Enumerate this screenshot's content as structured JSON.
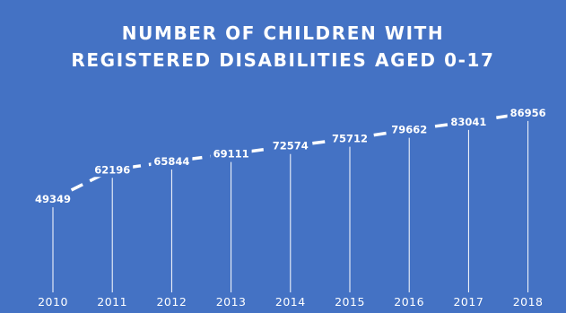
{
  "colors": {
    "background": "#4472C4",
    "line": "#ffffff",
    "text": "#ffffff"
  },
  "chart_data": {
    "type": "line",
    "title_lines": [
      "NUMBER OF CHILDREN WITH",
      "REGISTERED DISABILITIES AGED 0-17"
    ],
    "categories": [
      "2010",
      "2011",
      "2012",
      "2013",
      "2014",
      "2015",
      "2016",
      "2017",
      "2018"
    ],
    "values": [
      49349,
      62196,
      65844,
      69111,
      72574,
      75712,
      79662,
      83041,
      86956
    ],
    "ylim": [
      0,
      100000
    ],
    "line_style": "dashed",
    "drop_lines": true,
    "data_labels": true,
    "grid": false,
    "legend": "none"
  }
}
